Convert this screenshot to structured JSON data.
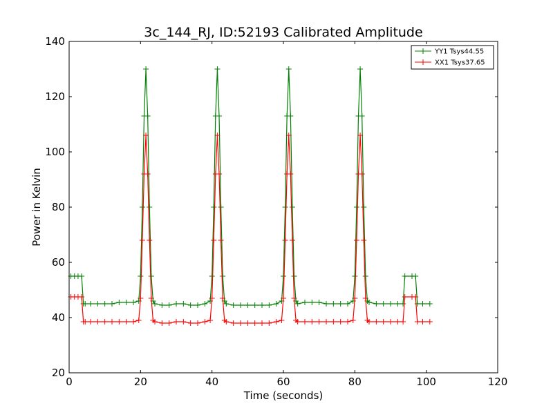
{
  "chart_data": {
    "type": "line",
    "title": "3c_144_RJ, ID:52193 Calibrated Amplitude",
    "xlabel": "Time (seconds)",
    "ylabel": "Power in Kelvin",
    "xlim": [
      0,
      120
    ],
    "ylim": [
      20,
      140
    ],
    "xticks": [
      0,
      20,
      40,
      60,
      80,
      100,
      120
    ],
    "yticks": [
      20,
      40,
      60,
      80,
      100,
      120,
      140
    ],
    "grid": false,
    "legend_position": "top-right",
    "marker": "plus",
    "series": [
      {
        "name": "YY1 Tsys44.55",
        "color": "#008000",
        "x": [
          0.5,
          1.5,
          2.5,
          3.5,
          4,
          4.5,
          6,
          8,
          10,
          12,
          14,
          16,
          18,
          19.5,
          20,
          20.5,
          21,
          21.5,
          22,
          22.5,
          23,
          23.5,
          24,
          26,
          28,
          30,
          32,
          34,
          36,
          38,
          39.5,
          40,
          40.5,
          41,
          41.5,
          42,
          42.5,
          43,
          43.5,
          44,
          46,
          48,
          50,
          52,
          54,
          56,
          58,
          59.5,
          60,
          60.5,
          61,
          61.5,
          62,
          62.5,
          63,
          63.5,
          64,
          66,
          68,
          70,
          72,
          74,
          76,
          78,
          79.5,
          80,
          80.5,
          81,
          81.5,
          82,
          82.5,
          83,
          83.5,
          84,
          86,
          88,
          90,
          92,
          93.5,
          94,
          96,
          97,
          97.5,
          99,
          101
        ],
        "y": [
          55,
          55,
          55,
          55,
          45,
          45,
          45,
          45,
          45,
          45,
          45.5,
          45.5,
          45.5,
          46,
          55,
          80,
          113,
          130,
          113,
          80,
          55,
          46,
          45,
          44.5,
          44.5,
          45,
          45,
          44.5,
          44.5,
          45,
          46,
          55,
          80,
          113,
          130,
          113,
          80,
          55,
          46,
          45,
          44.5,
          44.5,
          44.5,
          44.5,
          44.5,
          44.5,
          45,
          46,
          55,
          80,
          113,
          130,
          113,
          80,
          55,
          46,
          45,
          45.5,
          45.5,
          45.5,
          45,
          45,
          45,
          45,
          46,
          55,
          80,
          113,
          130,
          113,
          80,
          55,
          46,
          45.5,
          45,
          45,
          45,
          45,
          45,
          55,
          55,
          55,
          45,
          45,
          45
        ]
      },
      {
        "name": "XX1 Tsys37.65",
        "color": "#ff0000",
        "x": [
          0.5,
          1.5,
          2.5,
          3.5,
          4,
          4.5,
          6,
          8,
          10,
          12,
          14,
          16,
          18,
          19.5,
          20,
          20.5,
          21,
          21.5,
          22,
          22.5,
          23,
          23.5,
          24,
          26,
          28,
          30,
          32,
          34,
          36,
          38,
          39.5,
          40,
          40.5,
          41,
          41.5,
          42,
          42.5,
          43,
          43.5,
          44,
          46,
          48,
          50,
          52,
          54,
          56,
          58,
          59.5,
          60,
          60.5,
          61,
          61.5,
          62,
          62.5,
          63,
          63.5,
          64,
          66,
          68,
          70,
          72,
          74,
          76,
          78,
          79.5,
          80,
          80.5,
          81,
          81.5,
          82,
          82.5,
          83,
          83.5,
          84,
          86,
          88,
          90,
          92,
          93.5,
          94,
          96,
          97,
          97.5,
          99,
          101
        ],
        "y": [
          47.5,
          47.5,
          47.5,
          47.5,
          38.5,
          38.5,
          38.5,
          38.5,
          38.5,
          38.5,
          38.5,
          38.5,
          38.5,
          39,
          47,
          68,
          92,
          106,
          92,
          68,
          47,
          39,
          38.5,
          38,
          38,
          38.5,
          38.5,
          38,
          38,
          38.5,
          39,
          47,
          68,
          92,
          106,
          92,
          68,
          47,
          39,
          38.5,
          38,
          38,
          38,
          38,
          38,
          38,
          38.5,
          39,
          47,
          68,
          92,
          106,
          92,
          68,
          47,
          39,
          38.5,
          38.5,
          38.5,
          38.5,
          38.5,
          38.5,
          38.5,
          38.5,
          39,
          47,
          68,
          92,
          106,
          92,
          68,
          47,
          39,
          38.5,
          38.5,
          38.5,
          38.5,
          38.5,
          38.5,
          47.5,
          47.5,
          47.5,
          38.5,
          38.5,
          38.5
        ]
      }
    ]
  }
}
